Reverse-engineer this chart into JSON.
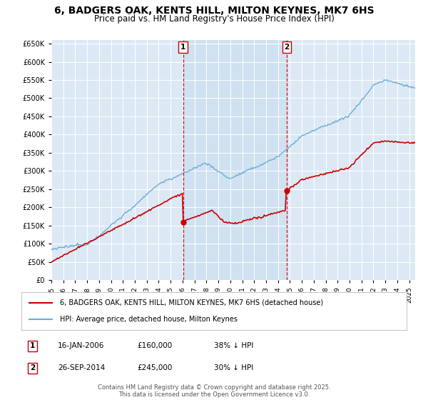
{
  "title": "6, BADGERS OAK, KENTS HILL, MILTON KEYNES, MK7 6HS",
  "subtitle": "Price paid vs. HM Land Registry's House Price Index (HPI)",
  "title_fontsize": 10,
  "subtitle_fontsize": 8.5,
  "background_color": "#ffffff",
  "plot_bg_color": "#dce9f5",
  "legend_entry1": "6, BADGERS OAK, KENTS HILL, MILTON KEYNES, MK7 6HS (detached house)",
  "legend_entry2": "HPI: Average price, detached house, Milton Keynes",
  "annotation1_date": "16-JAN-2006",
  "annotation1_price": "£160,000",
  "annotation1_hpi": "38% ↓ HPI",
  "annotation2_date": "26-SEP-2014",
  "annotation2_price": "£245,000",
  "annotation2_hpi": "30% ↓ HPI",
  "footer": "Contains HM Land Registry data © Crown copyright and database right 2025.\nThis data is licensed under the Open Government Licence v3.0.",
  "vline1_x": 2006.04,
  "vline2_x": 2014.73,
  "sale1_x": 2006.04,
  "sale1_y": 160000,
  "sale2_x": 2014.73,
  "sale2_y": 245000,
  "hpi_color": "#6baed6",
  "price_color": "#cc0000",
  "vline_color": "#cc0000",
  "shade_color": "#ccdff0",
  "ylim": [
    0,
    660000
  ],
  "xlim": [
    1995,
    2025.5
  ]
}
